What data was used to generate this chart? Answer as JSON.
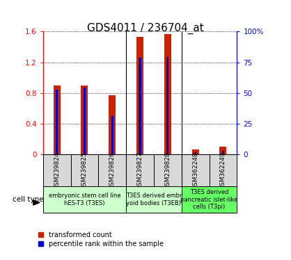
{
  "title": "GDS4011 / 236704_at",
  "samples": [
    "GSM239824",
    "GSM239825",
    "GSM239826",
    "GSM239827",
    "GSM239828",
    "GSM362248",
    "GSM362249"
  ],
  "transformed_count": [
    0.9,
    0.9,
    0.77,
    1.53,
    1.57,
    0.07,
    0.1
  ],
  "percentile_rank_scaled": [
    0.84,
    0.87,
    0.5,
    1.26,
    1.27,
    0.03,
    0.05
  ],
  "bar_color_red": "#cc2200",
  "bar_color_blue": "#0000cc",
  "ylim_left": [
    0,
    1.6
  ],
  "ylim_right": [
    0,
    100
  ],
  "yticks_left": [
    0,
    0.4,
    0.8,
    1.2,
    1.6
  ],
  "ytick_labels_left": [
    "0",
    "0.4",
    "0.8",
    "1.2",
    "1.6"
  ],
  "yticks_right": [
    0,
    25,
    50,
    75,
    100
  ],
  "ytick_labels_right": [
    "0",
    "25",
    "50",
    "75",
    "100%"
  ],
  "cell_groups": [
    {
      "label": "embryonic stem cell line\nhES-T3 (T3ES)",
      "start": 0,
      "end": 3,
      "color": "#ccffcc"
    },
    {
      "label": "T3ES derived embr\nyoid bodies (T3EB)",
      "start": 3,
      "end": 5,
      "color": "#ccffcc"
    },
    {
      "label": "T3ES derived\npancreatic islet-like\ncells (T3pi)",
      "start": 5,
      "end": 7,
      "color": "#66ff66"
    }
  ],
  "cell_type_label": "cell type",
  "legend_red_label": "transformed count",
  "legend_blue_label": "percentile rank within the sample",
  "red_bar_width": 0.25,
  "blue_bar_width": 0.08,
  "title_fontsize": 11,
  "tick_fontsize": 7.5,
  "sample_fontsize": 6.5,
  "group_fontsize": 6,
  "legend_fontsize": 7
}
